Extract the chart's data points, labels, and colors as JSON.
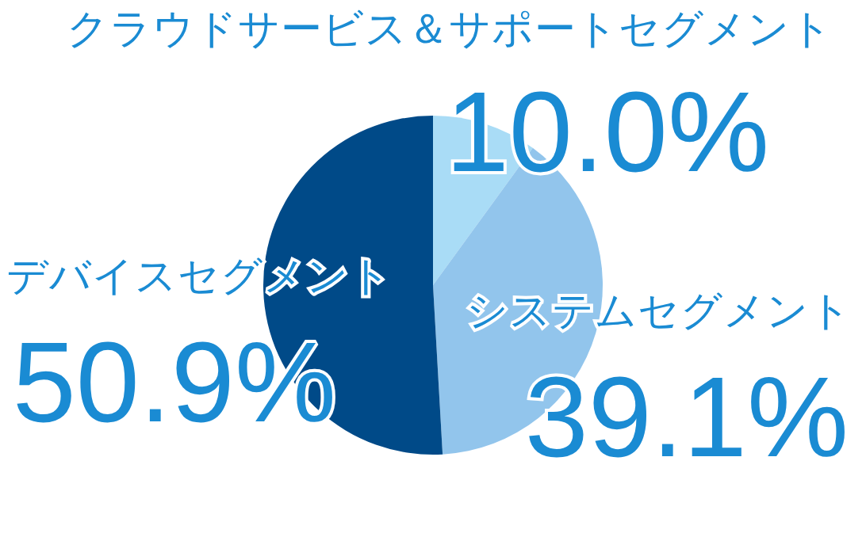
{
  "chart_data": {
    "type": "pie",
    "categories": [
      "クラウドサービス＆サポートセグメント",
      "システムセグメント",
      "デバイスセグメント"
    ],
    "values": [
      10.0,
      39.1,
      50.9
    ],
    "value_labels": [
      "10.0%",
      "39.1%",
      "50.9%"
    ],
    "colors": [
      "#a9dcf6",
      "#92c5ec",
      "#004a88"
    ]
  }
}
